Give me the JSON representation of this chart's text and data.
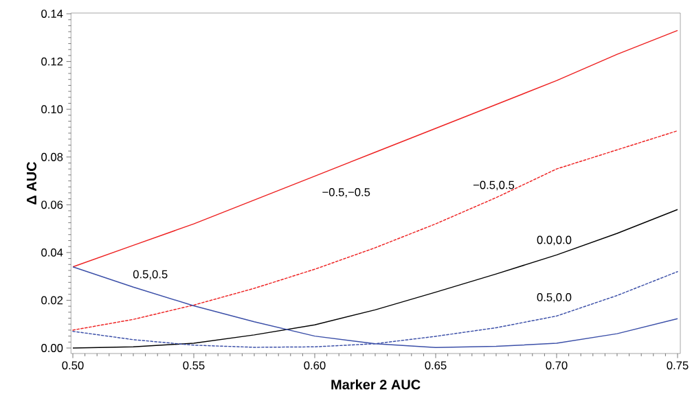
{
  "chart_data": {
    "type": "line",
    "xlabel": "Marker 2 AUC",
    "ylabel": "Δ AUC",
    "x": [
      0.5,
      0.525,
      0.55,
      0.575,
      0.6,
      0.625,
      0.65,
      0.675,
      0.7,
      0.725,
      0.75
    ],
    "series": [
      {
        "name": "−0.5,−0.5",
        "color": "#ee2222",
        "line_style": "solid",
        "values": [
          0.034,
          0.043,
          0.052,
          0.062,
          0.072,
          0.082,
          0.092,
          0.102,
          0.112,
          0.123,
          0.133
        ]
      },
      {
        "name": "−0.5,0.5",
        "color": "#ee2222",
        "line_style": "dashed",
        "values": [
          0.0075,
          0.012,
          0.018,
          0.025,
          0.033,
          0.042,
          0.052,
          0.063,
          0.075,
          0.083,
          0.091
        ]
      },
      {
        "name": "0.0,0.0",
        "color": "#000000",
        "line_style": "solid",
        "values": [
          0.0,
          0.0005,
          0.002,
          0.0055,
          0.0097,
          0.016,
          0.0234,
          0.031,
          0.039,
          0.048,
          0.058
        ]
      },
      {
        "name": "0.5,0.5",
        "color": "#3b4fa8",
        "line_style": "solid",
        "values": [
          0.034,
          0.0255,
          0.0177,
          0.011,
          0.005,
          0.0018,
          0.0002,
          0.0007,
          0.002,
          0.006,
          0.0123
        ]
      },
      {
        "name": "0.5,0.0",
        "color": "#3b4fa8",
        "line_style": "dashed",
        "values": [
          0.007,
          0.0035,
          0.0012,
          0.0003,
          0.0005,
          0.0018,
          0.0049,
          0.0085,
          0.0134,
          0.022,
          0.032
        ]
      }
    ],
    "xlim": [
      0.49923,
      0.75114
    ],
    "ylim": [
      -0.0023,
      0.1403
    ],
    "xticks": [
      {
        "value": 0.5,
        "label": "0.50"
      },
      {
        "value": 0.55,
        "label": "0.55"
      },
      {
        "value": 0.6,
        "label": "0.60"
      },
      {
        "value": 0.65,
        "label": "0.65"
      },
      {
        "value": 0.7,
        "label": "0.70"
      },
      {
        "value": 0.75,
        "label": "0.75"
      }
    ],
    "yticks": [
      {
        "value": 0,
        "label": "0.00"
      },
      {
        "value": 0.02,
        "label": "0.02"
      },
      {
        "value": 0.04,
        "label": "0.04"
      },
      {
        "value": 0.06,
        "label": "0.06"
      },
      {
        "value": 0.08,
        "label": "0.08"
      },
      {
        "value": 0.1,
        "label": "0.10"
      },
      {
        "value": 0.12,
        "label": "0.12"
      },
      {
        "value": 0.14,
        "label": "0.14"
      }
    ],
    "grid": false
  }
}
